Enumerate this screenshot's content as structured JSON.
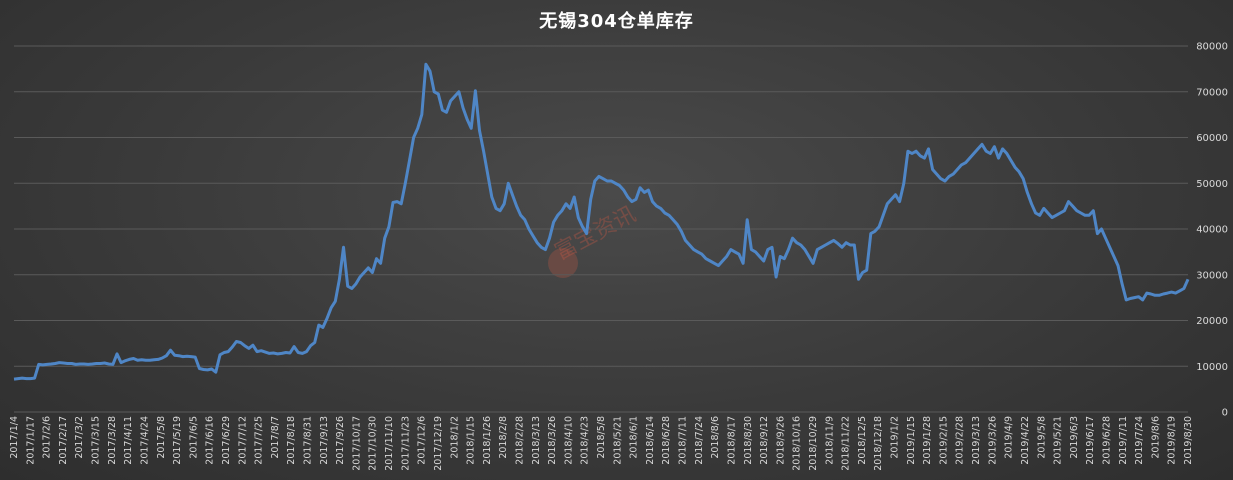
{
  "chart_data": {
    "type": "line",
    "title": "无锡304仓单库存",
    "xlabel": "",
    "ylabel": "",
    "ylim": [
      0,
      80000
    ],
    "yticks": [
      0,
      10000,
      20000,
      30000,
      40000,
      50000,
      60000,
      70000,
      80000
    ],
    "grid": true,
    "legend": "none",
    "y_axis_side": "right",
    "line_color": "#4f86c6",
    "watermark": "富宝资讯",
    "x_tick_labels": [
      "2017/1/4",
      "2017/1/17",
      "2017/2/6",
      "2017/2/17",
      "2017/3/2",
      "2017/3/15",
      "2017/3/28",
      "2017/4/11",
      "2017/4/24",
      "2017/5/8",
      "2017/5/19",
      "2017/6/5",
      "2017/6/16",
      "2017/6/29",
      "2017/7/12",
      "2017/7/25",
      "2017/8/7",
      "2017/8/18",
      "2017/8/31",
      "2017/9/13",
      "2017/9/26",
      "2017/10/17",
      "2017/10/30",
      "2017/11/10",
      "2017/11/23",
      "2017/12/6",
      "2017/12/19",
      "2018/1/2",
      "2018/1/15",
      "2018/1/26",
      "2018/2/8",
      "2018/2/28",
      "2018/3/13",
      "2018/3/26",
      "2018/4/10",
      "2018/4/23",
      "2018/5/8",
      "2018/5/21",
      "2018/6/1",
      "2018/6/14",
      "2018/6/28",
      "2018/7/11",
      "2018/7/24",
      "2018/8/6",
      "2018/8/17",
      "2018/8/30",
      "2018/9/12",
      "2018/9/26",
      "2018/10/16",
      "2018/10/29",
      "2018/11/9",
      "2018/11/22",
      "2018/12/5",
      "2018/12/18",
      "2019/1/2",
      "2019/1/15",
      "2019/1/28",
      "2019/2/15",
      "2019/2/28",
      "2019/3/13",
      "2019/3/26",
      "2019/4/9",
      "2019/4/22",
      "2019/5/8",
      "2019/5/21",
      "2019/6/3",
      "2019/6/17",
      "2019/6/28",
      "2019/7/11",
      "2019/7/24",
      "2019/8/6",
      "2019/8/19",
      "2019/8/30"
    ],
    "series": [
      {
        "values": [
          7200,
          7300,
          7400,
          7300,
          7300,
          7400,
          10400,
          10300,
          10400,
          10500,
          10600,
          10800,
          10700,
          10600,
          10600,
          10400,
          10500,
          10500,
          10400,
          10500,
          10600,
          10600,
          10700,
          10500,
          10400,
          12700,
          10800,
          11200,
          11500,
          11700,
          11300,
          11400,
          11300,
          11300,
          11400,
          11500,
          11800,
          12300,
          13500,
          12400,
          12300,
          12100,
          12200,
          12100,
          12000,
          9500,
          9300,
          9200,
          9400,
          8700,
          12500,
          13000,
          13200,
          14200,
          15400,
          15200,
          14500,
          13900,
          14600,
          13200,
          13400,
          13100,
          12800,
          12900,
          12700,
          12800,
          13000,
          12900,
          14300,
          13000,
          12800,
          13200,
          14500,
          15200,
          19000,
          18500,
          20500,
          22800,
          24200,
          29000,
          36000,
          27500,
          27000,
          28000,
          29500,
          30500,
          31500,
          30500,
          33500,
          32500,
          38000,
          40500,
          45800,
          46000,
          45500,
          50000,
          55000,
          60000,
          62000,
          65000,
          76000,
          74500,
          70000,
          69500,
          66000,
          65500,
          68000,
          69000,
          70000,
          66500,
          64000,
          62000,
          70200,
          61500,
          57000,
          52000,
          47000,
          44500,
          44000,
          45500,
          50000,
          47500,
          45000,
          43000,
          42000,
          40000,
          38500,
          37000,
          36000,
          35500,
          38000,
          41500,
          43000,
          44000,
          45500,
          44500,
          47000,
          42500,
          40500,
          39000,
          46500,
          50500,
          51500,
          51000,
          50500,
          50500,
          50000,
          49500,
          48500,
          47000,
          46000,
          46500,
          49000,
          48000,
          48500,
          46000,
          45000,
          44500,
          43500,
          43000,
          42000,
          41000,
          39500,
          37500,
          36500,
          35500,
          35000,
          34500,
          33500,
          33000,
          32500,
          32000,
          33000,
          34000,
          35500,
          35000,
          34500,
          32500,
          42000,
          35500,
          35000,
          34000,
          33000,
          35500,
          36000,
          29500,
          34000,
          33500,
          35500,
          38000,
          37000,
          36500,
          35500,
          34000,
          32500,
          35500,
          36000,
          36500,
          37000,
          37500,
          36800,
          36000,
          37000,
          36500,
          36500,
          29000,
          30500,
          31000,
          39000,
          39500,
          40500,
          43000,
          45500,
          46500,
          47500,
          46000,
          50000,
          57000,
          56500,
          57000,
          56000,
          55500,
          57500,
          53000,
          52000,
          51000,
          50500,
          51500,
          52000,
          53000,
          54000,
          54500,
          55500,
          56500,
          57500,
          58500,
          57000,
          56500,
          58000,
          55500,
          57500,
          56500,
          55000,
          53500,
          52500,
          51000,
          48000,
          45500,
          43500,
          43000,
          44500,
          43500,
          42500,
          43000,
          43500,
          44000,
          46000,
          45000,
          44000,
          43500,
          43000,
          43000,
          44000,
          39000,
          40000,
          38000,
          36000,
          34000,
          32000,
          28000,
          24500,
          24800,
          25000,
          25200,
          24500,
          26000,
          25800,
          25500,
          25500,
          25800,
          26000,
          26200,
          26000,
          26500,
          27000,
          29000
        ]
      }
    ]
  }
}
